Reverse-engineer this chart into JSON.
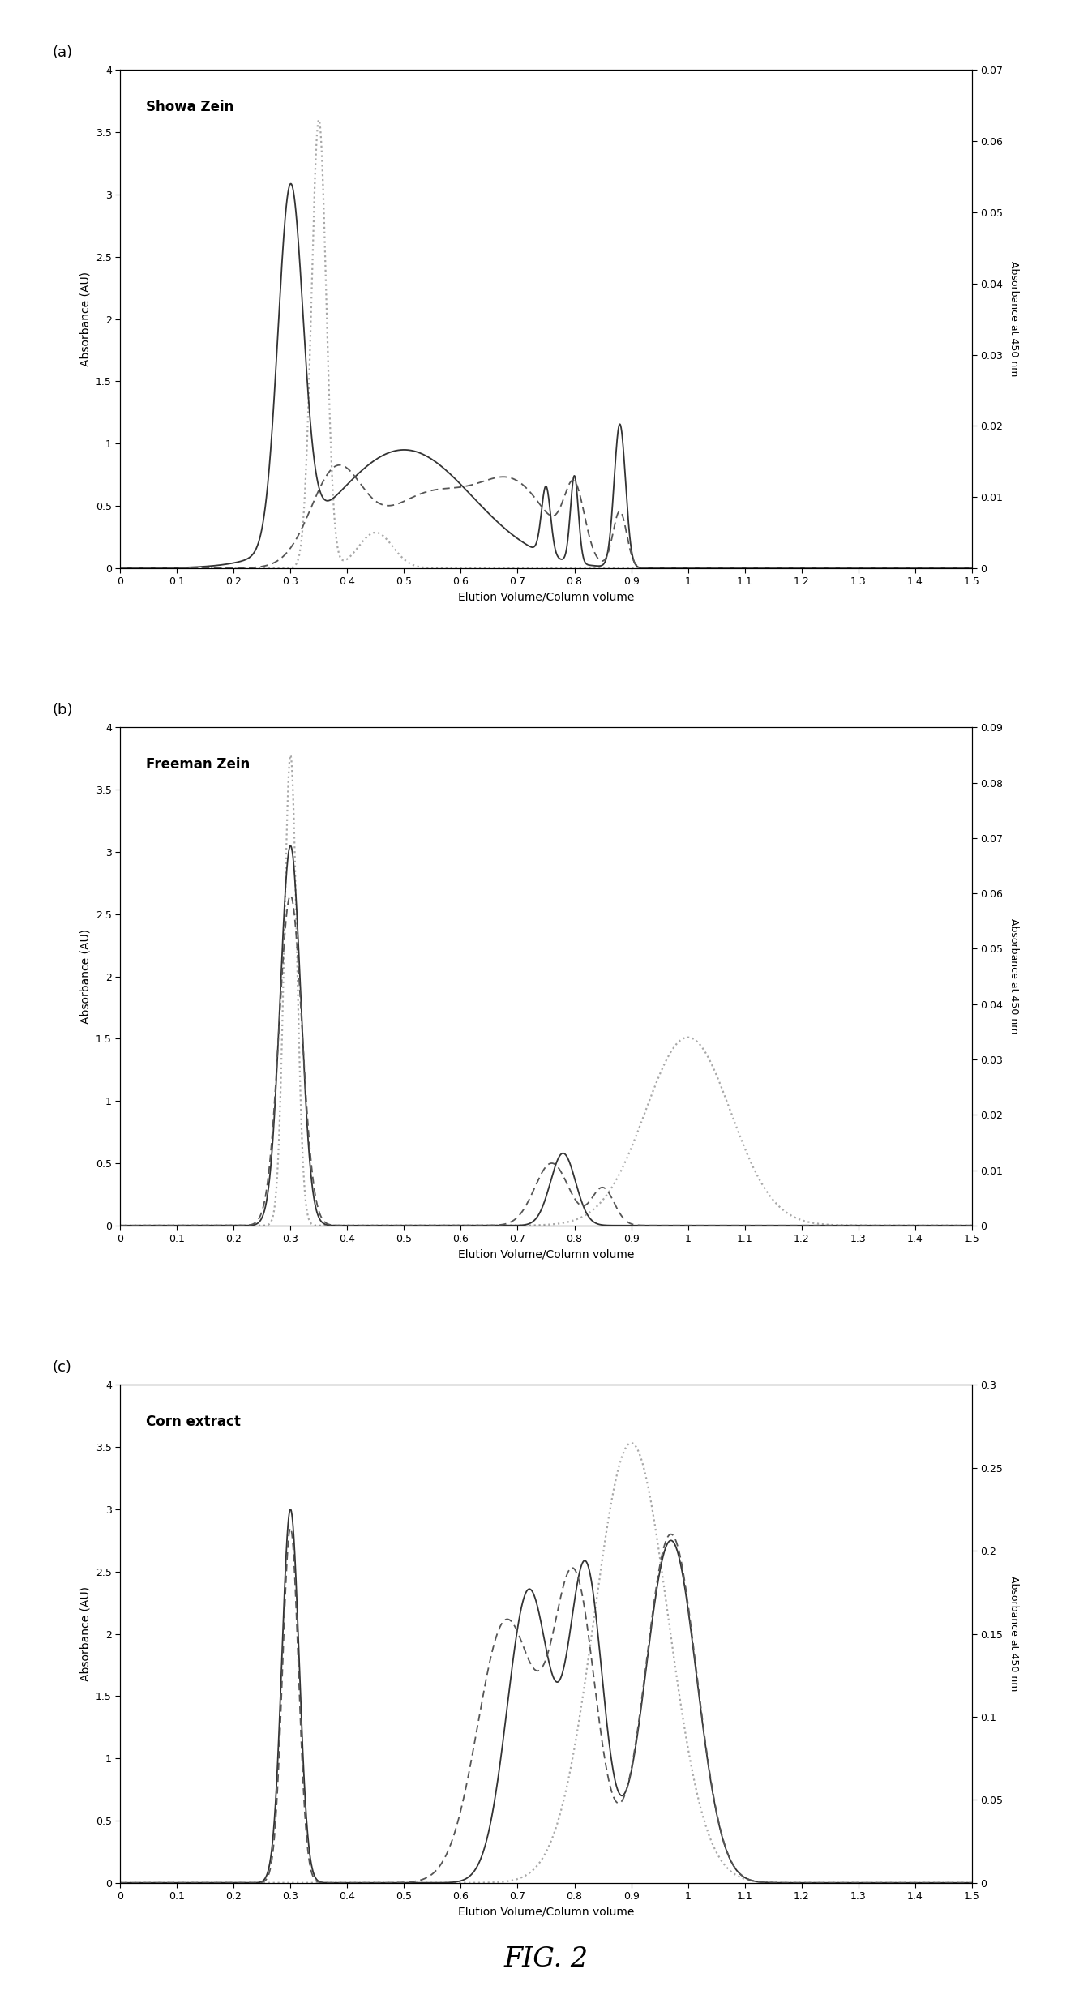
{
  "title": "FIG. 2",
  "panels": [
    {
      "label": "(a)",
      "title": "Showa Zein",
      "ylim_left": [
        0,
        4
      ],
      "ylim_right": [
        0,
        0.07
      ],
      "yticks_left": [
        0,
        0.5,
        1,
        1.5,
        2,
        2.5,
        3,
        3.5,
        4
      ],
      "yticks_right": [
        0,
        0.01,
        0.02,
        0.03,
        0.04,
        0.05,
        0.06,
        0.07
      ]
    },
    {
      "label": "(b)",
      "title": "Freeman Zein",
      "ylim_left": [
        0,
        4
      ],
      "ylim_right": [
        0,
        0.09
      ],
      "yticks_left": [
        0,
        0.5,
        1,
        1.5,
        2,
        2.5,
        3,
        3.5,
        4
      ],
      "yticks_right": [
        0,
        0.01,
        0.02,
        0.03,
        0.04,
        0.05,
        0.06,
        0.07,
        0.08,
        0.09
      ]
    },
    {
      "label": "(c)",
      "title": "Corn extract",
      "ylim_left": [
        0,
        4
      ],
      "ylim_right": [
        0,
        0.3
      ],
      "yticks_left": [
        0,
        0.5,
        1,
        1.5,
        2,
        2.5,
        3,
        3.5,
        4
      ],
      "yticks_right": [
        0,
        0.05,
        0.1,
        0.15,
        0.2,
        0.25,
        0.3
      ]
    }
  ],
  "xlim": [
    0,
    1.5
  ],
  "xticks": [
    0,
    0.1,
    0.2,
    0.3,
    0.4,
    0.5,
    0.6,
    0.7,
    0.8,
    0.9,
    1.0,
    1.1,
    1.2,
    1.3,
    1.4,
    1.5
  ],
  "xlabel": "Elution Volume/Column volume",
  "ylabel_left": "Absorbance (AU)",
  "ylabel_right": "Absorbance at 450 nm",
  "line_solid_color": "#333333",
  "line_dashed_color": "#555555",
  "line_dotted_color": "#999999",
  "background_color": "#ffffff",
  "fig_background": "#ffffff"
}
